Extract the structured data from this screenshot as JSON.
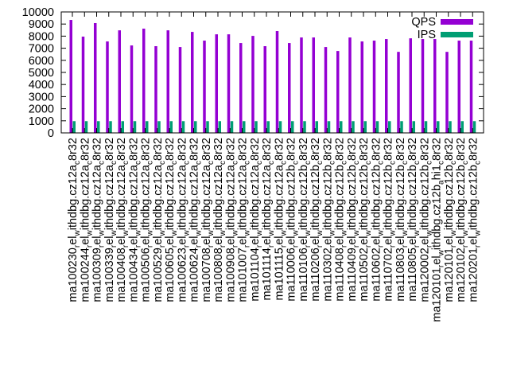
{
  "chart_data": {
    "type": "bar",
    "title": "",
    "xlabel": "",
    "ylabel": "",
    "ylim": [
      0,
      10000
    ],
    "yticks": [
      0,
      1000,
      2000,
      3000,
      4000,
      5000,
      6000,
      7000,
      8000,
      9000,
      10000
    ],
    "legend_position": "top-right",
    "categories": [
      "ma100230_rel_withdbg.cz12a_c8r32",
      "ma100244_rel_withdbg.cz12a_c8r32",
      "ma100309_rel_withdbg.cz12a_c8r32",
      "ma100339_rel_withdbg.cz12a_c8r32",
      "ma100408_rel_withdbg.cz12a_c8r32",
      "ma100434_rel_withdbg.cz12a_c8r32",
      "ma100506_rel_withdbg.cz12a_c8r32",
      "ma100529_rel_withdbg.cz12a_c8r32",
      "ma100605_rel_withdbg.cz12a_c8r32",
      "ma100623_rel_withdbg.cz12a_c8r32",
      "ma100624_rel_withdbg.cz12a_c8r32",
      "ma100708_rel_withdbg.cz12a_c8r32",
      "ma100808_rel_withdbg.cz12a_c8r32",
      "ma100908_rel_withdbg.cz12a_c8r32",
      "ma101007_rel_withdbg.cz12a_c8r32",
      "ma101104_rel_withdbg.cz12a_c8r32",
      "ma101114_rel_withdbg.cz12a_c8r32",
      "ma101115_rel_withdbg.cz12a_c8r32",
      "ma110006_rel_withdbg.cz12b_c8r32",
      "ma110106_rel_withdbg.cz12b_c8r32",
      "ma110206_rel_withdbg.cz12b_c8r32",
      "ma110302_rel_withdbg.cz12b_c8r32",
      "ma110408_rel_withdbg.cz12b_c8r32",
      "ma110409_rel_withdbg.cz12b_c8r32",
      "ma110502_rel_withdbg.cz12b_c8r32",
      "ma110602_rel_withdbg.cz12b_c8r32",
      "ma110702_rel_withdbg.cz12b_c8r32",
      "ma110803_rel_withdbg.cz12b_c8r32",
      "ma110805_rel_withdbg.cz12b_c8r32",
      "ma120002_rel_withdbg.cz12b_c8r32",
      "ma120101_rel_withdbg.cz12b_ahi1_c8r32",
      "ma120101_rel_withdbg.cz12b_c8r32",
      "ma120102_rel_withdbg.cz12b_c8r32",
      "ma120201_rel_withdbg.cz12b_c8r32"
    ],
    "series": [
      {
        "name": "QPS",
        "color": "#9400d3",
        "values": [
          9340,
          7960,
          9080,
          7560,
          8480,
          7230,
          8620,
          7170,
          8480,
          7100,
          8350,
          7630,
          8150,
          8150,
          7430,
          8020,
          7170,
          8420,
          7430,
          7890,
          7890,
          7100,
          6770,
          7890,
          7560,
          7630,
          7760,
          6700,
          7820,
          7760,
          7760,
          6700,
          7630,
          7630
        ]
      },
      {
        "name": "IPS",
        "color": "#009e73",
        "values": [
          970,
          970,
          970,
          970,
          970,
          970,
          970,
          970,
          970,
          970,
          970,
          970,
          970,
          970,
          970,
          970,
          970,
          970,
          970,
          970,
          970,
          970,
          970,
          970,
          970,
          970,
          970,
          970,
          970,
          970,
          970,
          970,
          970,
          970
        ]
      }
    ]
  }
}
